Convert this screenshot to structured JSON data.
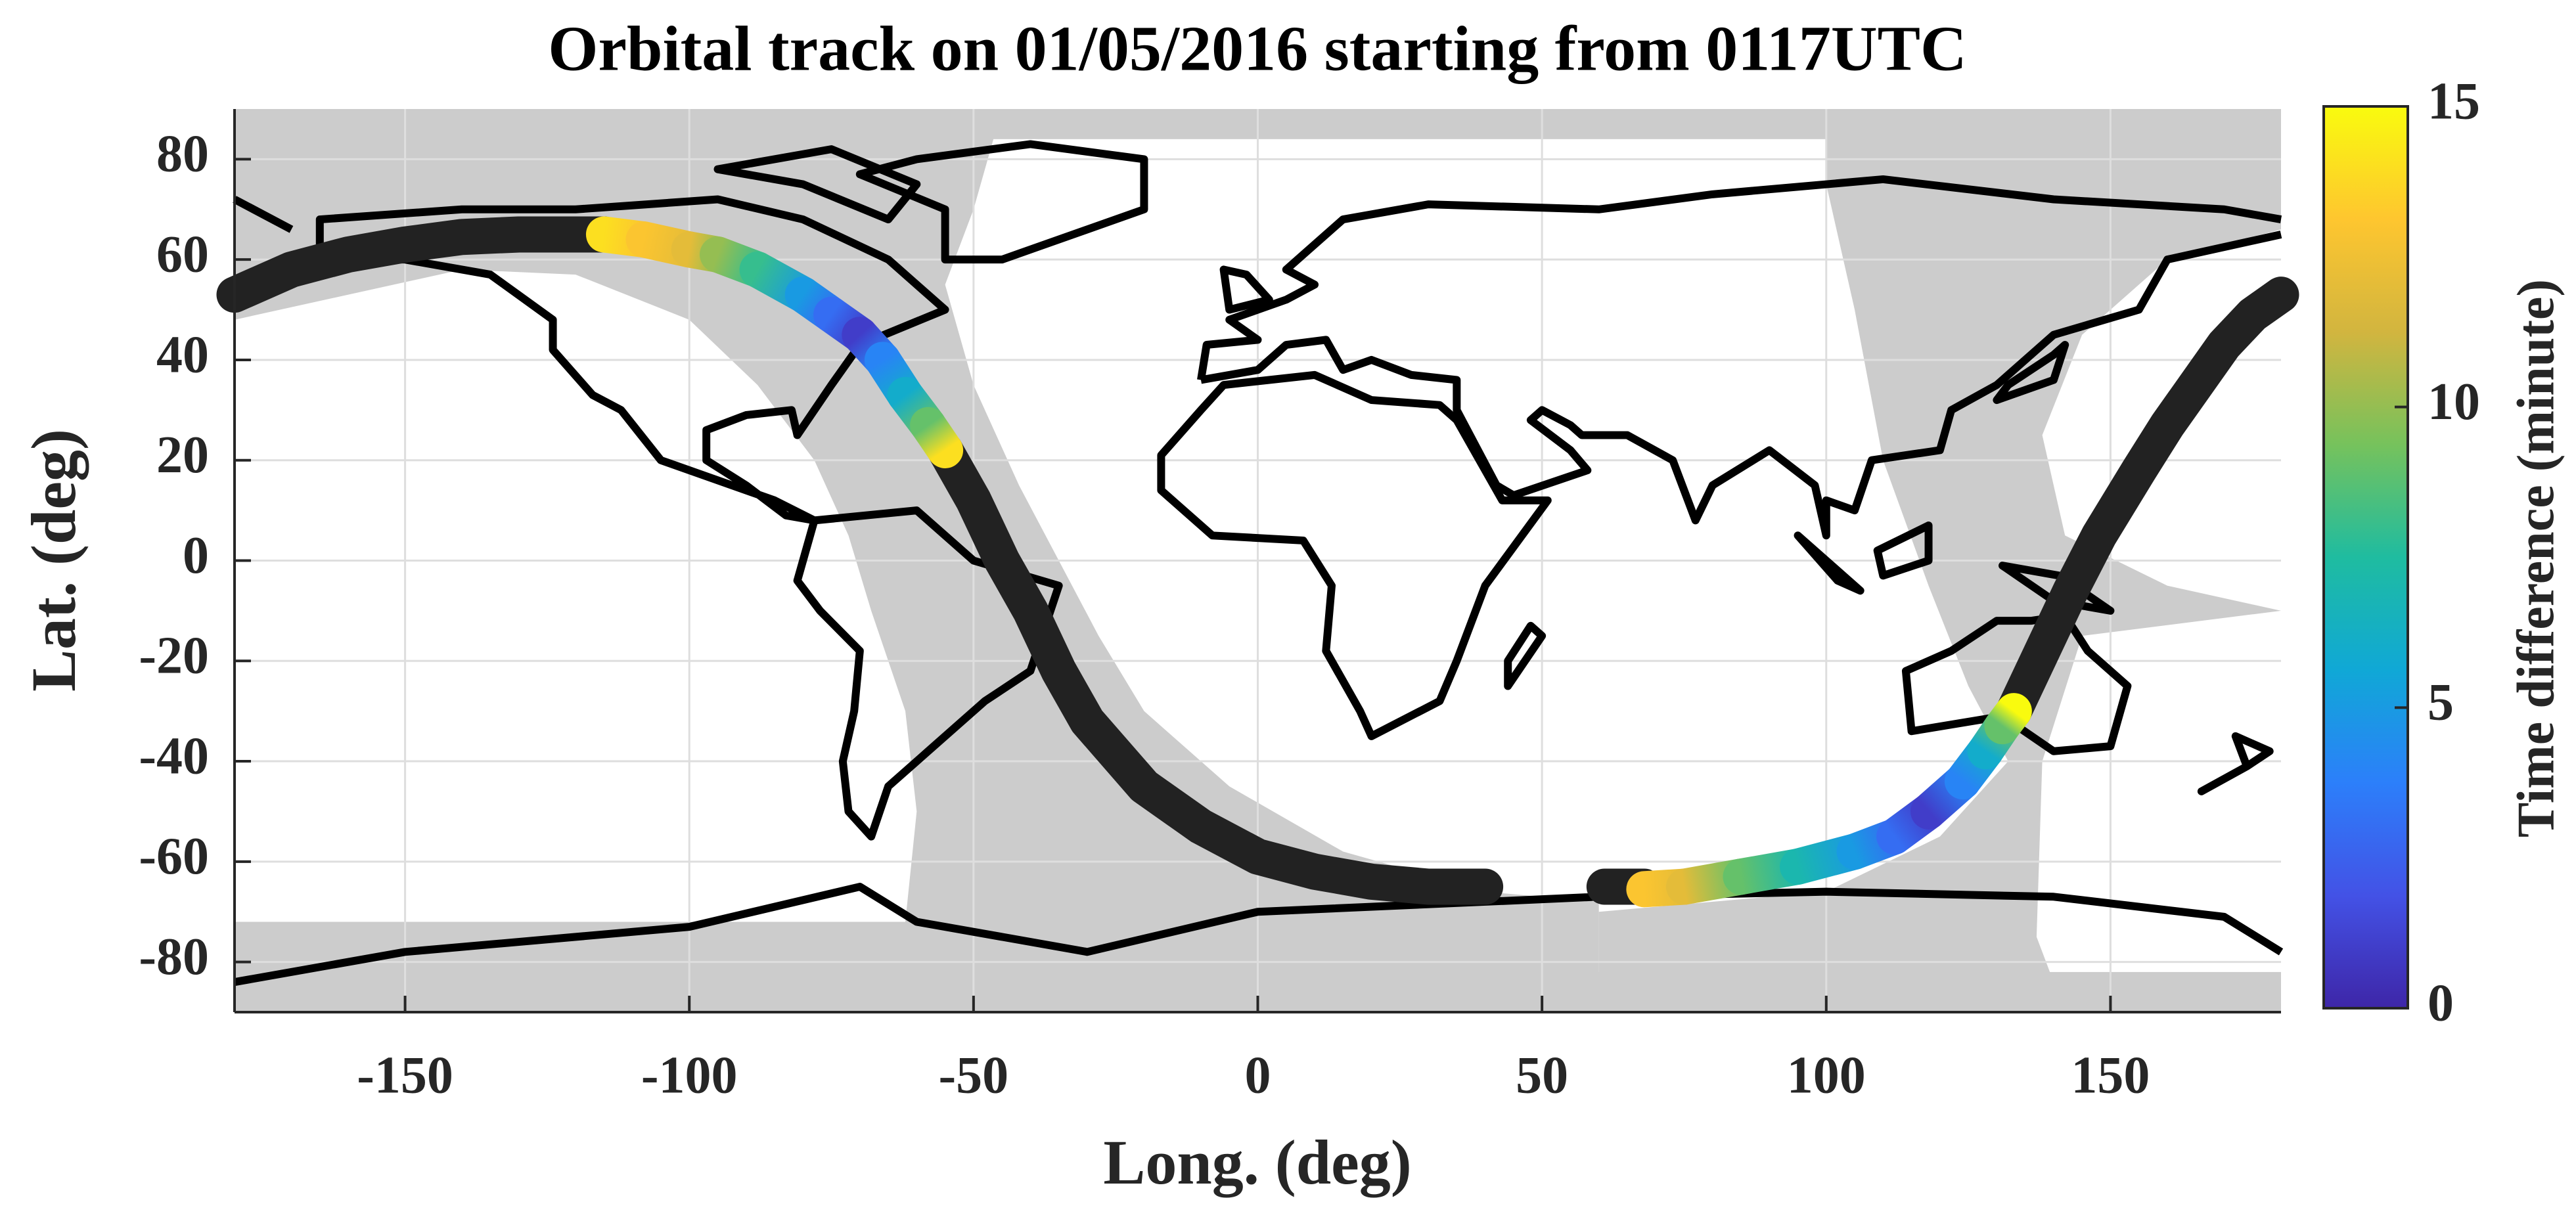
{
  "chart_data": {
    "type": "line",
    "title": "Orbital track on 01/05/2016 starting from 0117UTC",
    "x_label": "Long. (deg)",
    "y_label": "Lat. (deg)",
    "xlim": [
      -180,
      180
    ],
    "ylim": [
      -90,
      90
    ],
    "xticks": [
      -150,
      -100,
      -50,
      0,
      50,
      100,
      150
    ],
    "yticks": [
      -80,
      -60,
      -40,
      -20,
      0,
      20,
      40,
      60,
      80
    ],
    "grid": true,
    "series": [
      {
        "color": "#222222",
        "x": [
          -180,
          -170,
          -160,
          -150,
          -140,
          -130,
          -120,
          -115,
          null,
          -55,
          -50,
          -45,
          -40,
          -35,
          -30,
          -20,
          -10,
          0,
          10,
          20,
          30,
          40,
          null,
          61,
          68,
          null,
          133,
          138,
          143,
          148,
          155,
          160,
          165,
          170,
          175,
          180
        ],
        "y": [
          53,
          58,
          61,
          63,
          64.5,
          65,
          65,
          65,
          null,
          22,
          12,
          0,
          -10,
          -22,
          -32,
          -45,
          -53,
          -59,
          -62,
          -64,
          -65,
          -65,
          null,
          -65,
          -65,
          null,
          -30,
          -18,
          -6,
          5,
          18,
          27,
          35,
          43,
          49,
          53
        ]
      },
      {
        "colored_by": "c",
        "x": [
          -115,
          -108,
          -100,
          -95,
          -88,
          -80,
          -75,
          -70,
          -66,
          -62,
          -58,
          -55,
          null,
          68,
          75,
          85,
          95,
          105,
          112,
          118,
          124,
          128,
          131,
          133
        ],
        "y": [
          65,
          64,
          62,
          61,
          58,
          53,
          49,
          45,
          40,
          33,
          27,
          22,
          null,
          -65.5,
          -65,
          -63,
          -61,
          -58,
          -55,
          -50,
          -44,
          -38,
          -33,
          -30
        ],
        "c": [
          14,
          13,
          12,
          10,
          8,
          5,
          3,
          1,
          4,
          6,
          9,
          14,
          null,
          13,
          12,
          9,
          7,
          5,
          3,
          1,
          4,
          6,
          9,
          15
        ]
      }
    ],
    "colorbar": {
      "label": "Time difference (minute)",
      "lim": [
        0,
        15
      ],
      "ticks": [
        0,
        5,
        10,
        15
      ],
      "colormap": [
        "#3e26a8",
        "#4352e6",
        "#2c7ffa",
        "#10a8d6",
        "#1fbca0",
        "#76c25c",
        "#d2b53f",
        "#fec62f",
        "#f9fb0e"
      ]
    }
  }
}
